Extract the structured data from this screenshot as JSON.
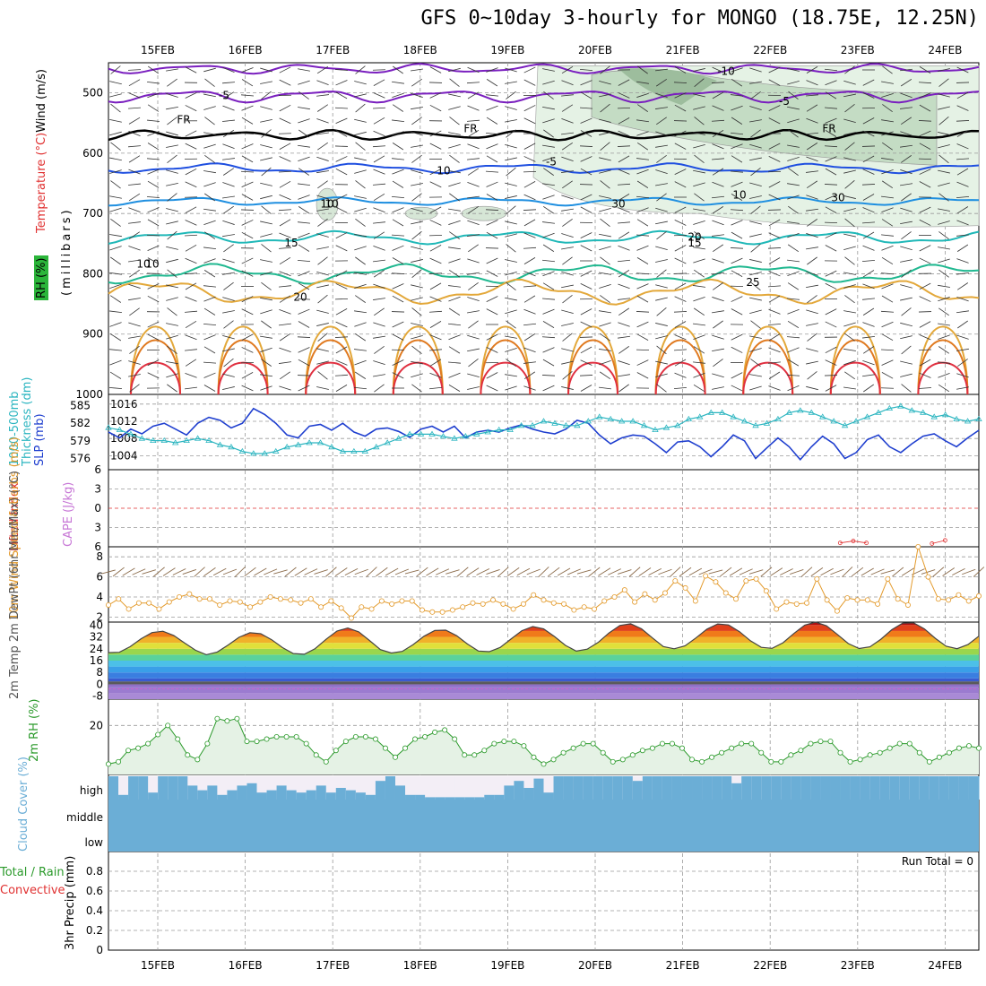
{
  "title": "GFS 0~10day 3-hourly for MONGO (18.75E, 12.25N)",
  "colors": {
    "grid": "#9a9a9a",
    "temp_line": "#1f3fcf",
    "slp_line": "#2bb5c0",
    "wind": "#e39a2b",
    "rh": "#2b9a2b",
    "cloud": "#6baed6",
    "cape": "#c777d6",
    "li": "#e03030"
  },
  "chart_data": [
    {
      "type": "line",
      "panel": "upper_air",
      "dates": [
        "15FEB",
        "16FEB",
        "17FEB",
        "18FEB",
        "19FEB",
        "20FEB",
        "21FEB",
        "22FEB",
        "23FEB",
        "24FEB"
      ],
      "ylabel_parts": [
        "RH (%)",
        "Temperature (°C)",
        "Wind (m/s)",
        "(millibars)"
      ],
      "ylim": [
        1000,
        450
      ],
      "yticks": [
        500,
        600,
        700,
        800,
        900,
        1000
      ],
      "isotherm_labels": [
        "-10",
        "-5",
        "-5",
        "FR",
        "FR",
        "FR",
        "-5",
        "10",
        "10",
        "15",
        "20",
        "25",
        "20",
        "15",
        "10"
      ],
      "rh_labels": [
        "10",
        "10",
        "30",
        "30",
        "10"
      ]
    },
    {
      "type": "line",
      "panel": "thickness_slp",
      "ylabel_left": "1000-500mb Thickness (dm)",
      "ylabel_right": "SLP (mb)",
      "yticks_left": [
        576,
        579,
        582,
        585
      ],
      "yticks_right": [
        1004,
        1008,
        1012,
        1016
      ],
      "series": [
        {
          "name": "Thickness",
          "values": [
            580.5,
            579.5,
            581,
            580.2,
            581.5,
            582,
            581,
            580,
            582,
            583,
            582.5,
            581.2,
            582,
            584.5,
            583.5,
            582,
            580,
            579.5,
            581.5,
            581.8,
            580.8,
            582,
            580.5,
            579.8,
            581,
            581.2,
            580.6,
            579.6,
            581,
            581.5,
            580.5,
            581.5,
            579.5,
            580.5,
            580.8,
            580.5,
            581.2,
            581.7,
            581,
            580.5,
            580.2,
            581,
            582.5,
            582,
            580,
            578.5,
            579.5,
            580,
            579.8,
            578.5,
            577,
            578.8,
            579,
            578,
            576.3,
            578,
            580,
            579,
            576,
            577.8,
            579.5,
            578,
            575.8,
            578,
            579.8,
            578.5,
            576,
            577,
            579.2,
            580,
            578,
            577,
            578.5,
            579.8,
            580.2,
            579,
            578,
            579.5,
            580.8
          ]
        },
        {
          "name": "SLP",
          "values": [
            1010.5,
            1010,
            1009,
            1008,
            1007.5,
            1007.5,
            1007,
            1007.5,
            1008,
            1007.5,
            1006.5,
            1006,
            1005,
            1004.5,
            1004.5,
            1005,
            1006,
            1006.5,
            1007,
            1007,
            1006,
            1005,
            1005,
            1005,
            1006,
            1007,
            1008,
            1009,
            1009,
            1009,
            1008.5,
            1008,
            1008.5,
            1009,
            1009.5,
            1010,
            1010,
            1011,
            1011,
            1012,
            1011.5,
            1011,
            1011,
            1012,
            1013,
            1012.5,
            1012,
            1012,
            1011,
            1010,
            1010.5,
            1011,
            1012.5,
            1013,
            1014,
            1014,
            1013,
            1012,
            1011,
            1011.5,
            1012.5,
            1014,
            1014.5,
            1014,
            1013,
            1012,
            1011,
            1012,
            1013,
            1014,
            1015,
            1015.5,
            1014.5,
            1014,
            1013,
            1013.5,
            1012.5,
            1012,
            1012.5
          ]
        }
      ]
    },
    {
      "type": "line",
      "panel": "stability",
      "ylabel_left": "Lifted Index",
      "ylabel_right": "CAPE (J/kg)",
      "yticks": [
        -6,
        -3,
        0,
        3,
        6
      ],
      "cape_points": [
        [
          7.8,
          5.4
        ],
        [
          7.95,
          5.1
        ],
        [
          8.1,
          5.4
        ],
        [
          8.85,
          5.5
        ],
        [
          9.0,
          5.0
        ]
      ]
    },
    {
      "type": "line",
      "panel": "wind10m",
      "ylabel": "10m Wind Speed & Barbs (m/s)",
      "yticks": [
        2,
        4,
        6,
        8
      ],
      "ylim": [
        1.5,
        9
      ],
      "values": [
        3.2,
        3.8,
        2.8,
        3.4,
        3.4,
        2.8,
        3.5,
        4,
        4.3,
        3.8,
        3.8,
        3.2,
        3.6,
        3.5,
        3,
        3.5,
        4,
        3.8,
        3.7,
        3.4,
        3.8,
        3,
        3.6,
        2.9,
        1.9,
        3,
        2.8,
        3.6,
        3.3,
        3.6,
        3.6,
        2.7,
        2.5,
        2.5,
        2.7,
        3,
        3.4,
        3.3,
        3.7,
        3.3,
        2.8,
        3.3,
        4.2,
        3.7,
        3.4,
        3.3,
        2.7,
        3,
        2.8,
        3.6,
        4,
        4.7,
        3.5,
        4.3,
        3.7,
        4.4,
        5.6,
        4.9,
        3.6,
        6.1,
        5.5,
        4.4,
        3.8,
        5.6,
        5.8,
        4.6,
        2.8,
        3.5,
        3.3,
        3.4,
        5.8,
        3.7,
        2.6,
        3.9,
        3.7,
        3.7,
        3.3,
        5.8,
        3.8,
        3.2,
        9,
        6,
        3.8,
        3.7,
        4.2,
        3.6,
        4.1
      ]
    },
    {
      "type": "area",
      "panel": "temperature2m",
      "ylabel": "2m Temp 2m DewPt (6hr Min/Max) (°C)",
      "yticks": [
        -8,
        0,
        8,
        16,
        24,
        32,
        40
      ],
      "temp_max": [
        36,
        35,
        38,
        37,
        39,
        41,
        41,
        42,
        42,
        41
      ],
      "temp_min": [
        21,
        20,
        20,
        21,
        22,
        23,
        24,
        24,
        24,
        24
      ],
      "dewpoint": -3
    },
    {
      "type": "area",
      "panel": "rh2m",
      "ylabel": "2m RH (%)",
      "yticks": [
        20
      ],
      "ylim": [
        0,
        30
      ],
      "values": [
        3,
        4,
        9,
        10,
        12,
        16,
        20,
        14,
        7,
        5,
        12,
        23,
        22,
        23,
        13,
        13,
        14,
        15,
        15,
        15,
        12,
        7,
        4,
        9,
        13,
        15,
        15,
        14,
        10,
        6,
        10,
        14,
        15,
        17,
        18,
        14,
        7,
        7,
        9,
        12,
        13,
        13,
        11,
        6,
        3,
        5,
        8,
        10,
        12,
        12,
        8,
        4,
        5,
        7,
        9,
        10,
        12,
        12,
        10,
        5,
        4,
        6,
        8,
        10,
        12,
        12,
        8,
        4,
        4,
        7,
        9,
        12,
        13,
        13,
        8,
        4,
        5,
        7,
        8,
        10,
        12,
        12,
        8,
        4,
        6,
        8,
        10,
        11,
        10
      ]
    },
    {
      "type": "bar",
      "panel": "cloud",
      "ylabel": "Cloud Cover (%)",
      "levels": [
        "high",
        "middle",
        "low"
      ],
      "high_cover": [
        100,
        20,
        100,
        100,
        30,
        100,
        100,
        100,
        60,
        40,
        60,
        20,
        40,
        60,
        70,
        30,
        40,
        60,
        40,
        30,
        40,
        60,
        30,
        50,
        40,
        30,
        20,
        80,
        100,
        60,
        20,
        20,
        10,
        10,
        10,
        10,
        10,
        10,
        20,
        20,
        60,
        80,
        50,
        90,
        30,
        100,
        100,
        100,
        100,
        100,
        100,
        100,
        100,
        80,
        100,
        100,
        100,
        100,
        100,
        100,
        100,
        100,
        100,
        70,
        100,
        100,
        100,
        100,
        100,
        100,
        100,
        100,
        100,
        100,
        100,
        100,
        100,
        100,
        100,
        100,
        100,
        100,
        100,
        100,
        100,
        100,
        100,
        100
      ]
    },
    {
      "type": "bar",
      "panel": "precip",
      "ylabel": "3hr Precip (mm)",
      "ylabel2": "Total / Rain",
      "ylabel3": "Convective",
      "yticks": [
        0,
        0.2,
        0.4,
        0.6,
        0.8
      ],
      "ylim": [
        0,
        1
      ],
      "run_total": "Run Total = 0",
      "values": []
    }
  ]
}
